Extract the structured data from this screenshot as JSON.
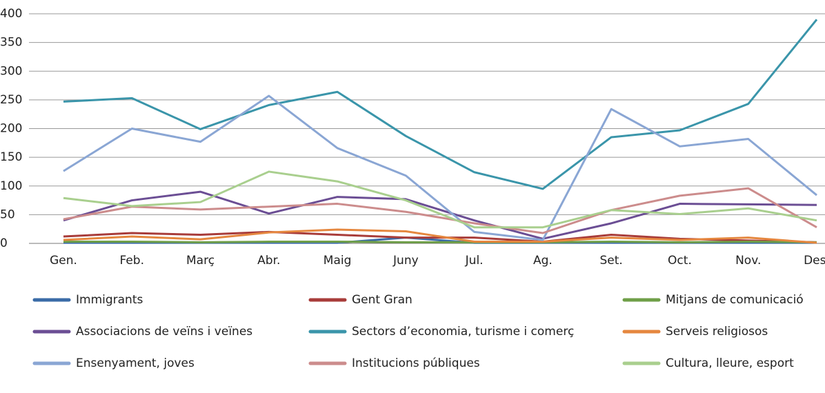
{
  "chart_data": {
    "type": "line",
    "categories": [
      "Gen.",
      "Feb.",
      "Març",
      "Abr.",
      "Maig",
      "Juny",
      "Jul.",
      "Ag.",
      "Set.",
      "Oct.",
      "Nov.",
      "Des."
    ],
    "ylim": [
      0,
      400
    ],
    "yticks": [
      0,
      50,
      100,
      150,
      200,
      250,
      300,
      350,
      400
    ],
    "grid": true,
    "series": [
      {
        "name": "Immigrants",
        "color": "#3a6ba7",
        "values": [
          1,
          1,
          1,
          1,
          1,
          10,
          1,
          1,
          1,
          1,
          1,
          1
        ]
      },
      {
        "name": "Gent Gran",
        "color": "#a83c3a",
        "values": [
          12,
          18,
          15,
          20,
          15,
          10,
          10,
          3,
          15,
          8,
          5,
          2
        ]
      },
      {
        "name": "Mitjans de comunicació",
        "color": "#6f9f48",
        "values": [
          3,
          3,
          2,
          3,
          3,
          2,
          2,
          2,
          3,
          2,
          3,
          2
        ]
      },
      {
        "name": "Associacions de veïns i veïnes",
        "color": "#6b4e94",
        "values": [
          40,
          75,
          90,
          52,
          81,
          77,
          40,
          8,
          35,
          69,
          68,
          67
        ]
      },
      {
        "name": "Sectors d’economia, turisme i comerç",
        "color": "#3a95aa",
        "values": [
          247,
          253,
          199,
          241,
          264,
          187,
          124,
          95,
          185,
          197,
          243,
          390
        ]
      },
      {
        "name": "Serveis religiosos",
        "color": "#e5873f",
        "values": [
          6,
          12,
          7,
          19,
          24,
          21,
          3,
          3,
          10,
          6,
          10,
          1
        ]
      },
      {
        "name": "Ensenyament, joves",
        "color": "#8aa6d4",
        "values": [
          126,
          200,
          177,
          257,
          166,
          118,
          20,
          6,
          234,
          169,
          182,
          84
        ]
      },
      {
        "name": "Institucions públiques",
        "color": "#cc8c8c",
        "values": [
          42,
          64,
          59,
          64,
          69,
          55,
          35,
          18,
          58,
          83,
          96,
          28
        ]
      },
      {
        "name": "Cultura, lleure, esport",
        "color": "#a9cf8e",
        "values": [
          79,
          65,
          72,
          125,
          108,
          75,
          28,
          28,
          58,
          51,
          61,
          40
        ]
      }
    ]
  }
}
